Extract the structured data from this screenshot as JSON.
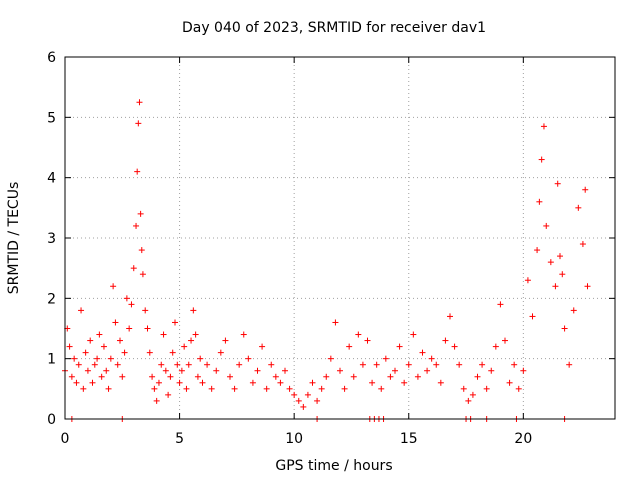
{
  "chart_data": {
    "type": "scatter",
    "title": "Day 040 of 2023, SRMTID for receiver dav1",
    "xlabel": "GPS time / hours",
    "ylabel": "SRMTID / TECUs",
    "xlim": [
      0,
      24
    ],
    "ylim": [
      0,
      6
    ],
    "xticks": [
      0,
      5,
      10,
      15,
      20
    ],
    "yticks": [
      0,
      1,
      2,
      3,
      4,
      5,
      6
    ],
    "grid": true,
    "marker": "+",
    "color": "#ff0000",
    "series": [
      {
        "name": "SRMTID",
        "x": [
          0.0,
          0.1,
          0.2,
          0.3,
          0.4,
          0.5,
          0.6,
          0.7,
          0.8,
          0.9,
          1.0,
          1.1,
          1.2,
          1.3,
          1.4,
          1.5,
          1.6,
          1.7,
          1.8,
          1.9,
          2.0,
          2.1,
          2.2,
          2.3,
          2.4,
          2.5,
          2.6,
          2.7,
          2.8,
          2.9,
          3.0,
          3.1,
          3.15,
          3.2,
          3.25,
          3.3,
          3.35,
          3.4,
          3.5,
          3.6,
          3.7,
          3.8,
          3.9,
          4.0,
          4.1,
          4.2,
          4.3,
          4.4,
          4.5,
          4.6,
          4.7,
          4.8,
          4.9,
          5.0,
          5.1,
          5.2,
          5.3,
          5.4,
          5.5,
          5.6,
          5.7,
          5.8,
          5.9,
          6.0,
          6.2,
          6.4,
          6.6,
          6.8,
          7.0,
          7.2,
          7.4,
          7.6,
          7.8,
          8.0,
          8.2,
          8.4,
          8.6,
          8.8,
          9.0,
          9.2,
          9.4,
          9.6,
          9.8,
          10.0,
          10.2,
          10.4,
          10.6,
          10.8,
          11.0,
          11.2,
          11.4,
          11.6,
          11.8,
          12.0,
          12.2,
          12.4,
          12.6,
          12.8,
          13.0,
          13.2,
          13.4,
          13.6,
          13.8,
          14.0,
          14.2,
          14.4,
          14.6,
          14.8,
          15.0,
          15.2,
          15.4,
          15.6,
          15.8,
          16.0,
          16.2,
          16.4,
          16.6,
          16.8,
          17.0,
          17.2,
          17.4,
          17.6,
          17.8,
          18.0,
          18.2,
          18.4,
          18.6,
          18.8,
          19.0,
          19.2,
          19.4,
          19.6,
          19.8,
          20.0,
          20.2,
          20.4,
          20.6,
          20.7,
          20.8,
          20.9,
          21.0,
          21.2,
          21.4,
          21.5,
          21.6,
          21.7,
          21.8,
          22.0,
          22.2,
          22.4,
          22.6,
          22.7,
          22.8
        ],
        "y": [
          0.8,
          1.5,
          1.2,
          0.7,
          1.0,
          0.6,
          0.9,
          1.8,
          0.5,
          1.1,
          0.8,
          1.3,
          0.6,
          0.9,
          1.0,
          1.4,
          0.7,
          1.2,
          0.8,
          0.5,
          1.0,
          2.2,
          1.6,
          0.9,
          1.3,
          0.7,
          1.1,
          2.0,
          1.5,
          1.9,
          2.5,
          3.2,
          4.1,
          4.9,
          5.25,
          3.4,
          2.8,
          2.4,
          1.8,
          1.5,
          1.1,
          0.7,
          0.5,
          0.3,
          0.6,
          0.9,
          1.4,
          0.8,
          0.4,
          0.7,
          1.1,
          1.6,
          0.9,
          0.6,
          0.8,
          1.2,
          0.5,
          0.9,
          1.3,
          1.8,
          1.4,
          0.7,
          1.0,
          0.6,
          0.9,
          0.5,
          0.8,
          1.1,
          1.3,
          0.7,
          0.5,
          0.9,
          1.4,
          1.0,
          0.6,
          0.8,
          1.2,
          0.5,
          0.9,
          0.7,
          0.6,
          0.8,
          0.5,
          0.4,
          0.3,
          0.2,
          0.4,
          0.6,
          0.3,
          0.5,
          0.7,
          1.0,
          1.6,
          0.8,
          0.5,
          1.2,
          0.7,
          1.4,
          0.9,
          1.3,
          0.6,
          0.9,
          0.5,
          1.0,
          0.7,
          0.8,
          1.2,
          0.6,
          0.9,
          1.4,
          0.7,
          1.1,
          0.8,
          1.0,
          0.9,
          0.6,
          1.3,
          1.7,
          1.2,
          0.9,
          0.5,
          0.3,
          0.4,
          0.7,
          0.9,
          0.5,
          0.8,
          1.2,
          1.9,
          1.3,
          0.6,
          0.9,
          0.5,
          0.8,
          2.3,
          1.7,
          2.8,
          3.6,
          4.3,
          4.85,
          3.2,
          2.6,
          2.2,
          3.9,
          2.7,
          2.4,
          1.5,
          0.9,
          1.8,
          3.5,
          2.9,
          3.8,
          2.2
        ],
        "zero_markers_x": [
          0.3,
          2.5,
          11.0,
          13.3,
          13.5,
          13.7,
          13.9,
          17.5,
          17.7,
          18.4,
          19.7,
          21.8
        ]
      }
    ]
  }
}
